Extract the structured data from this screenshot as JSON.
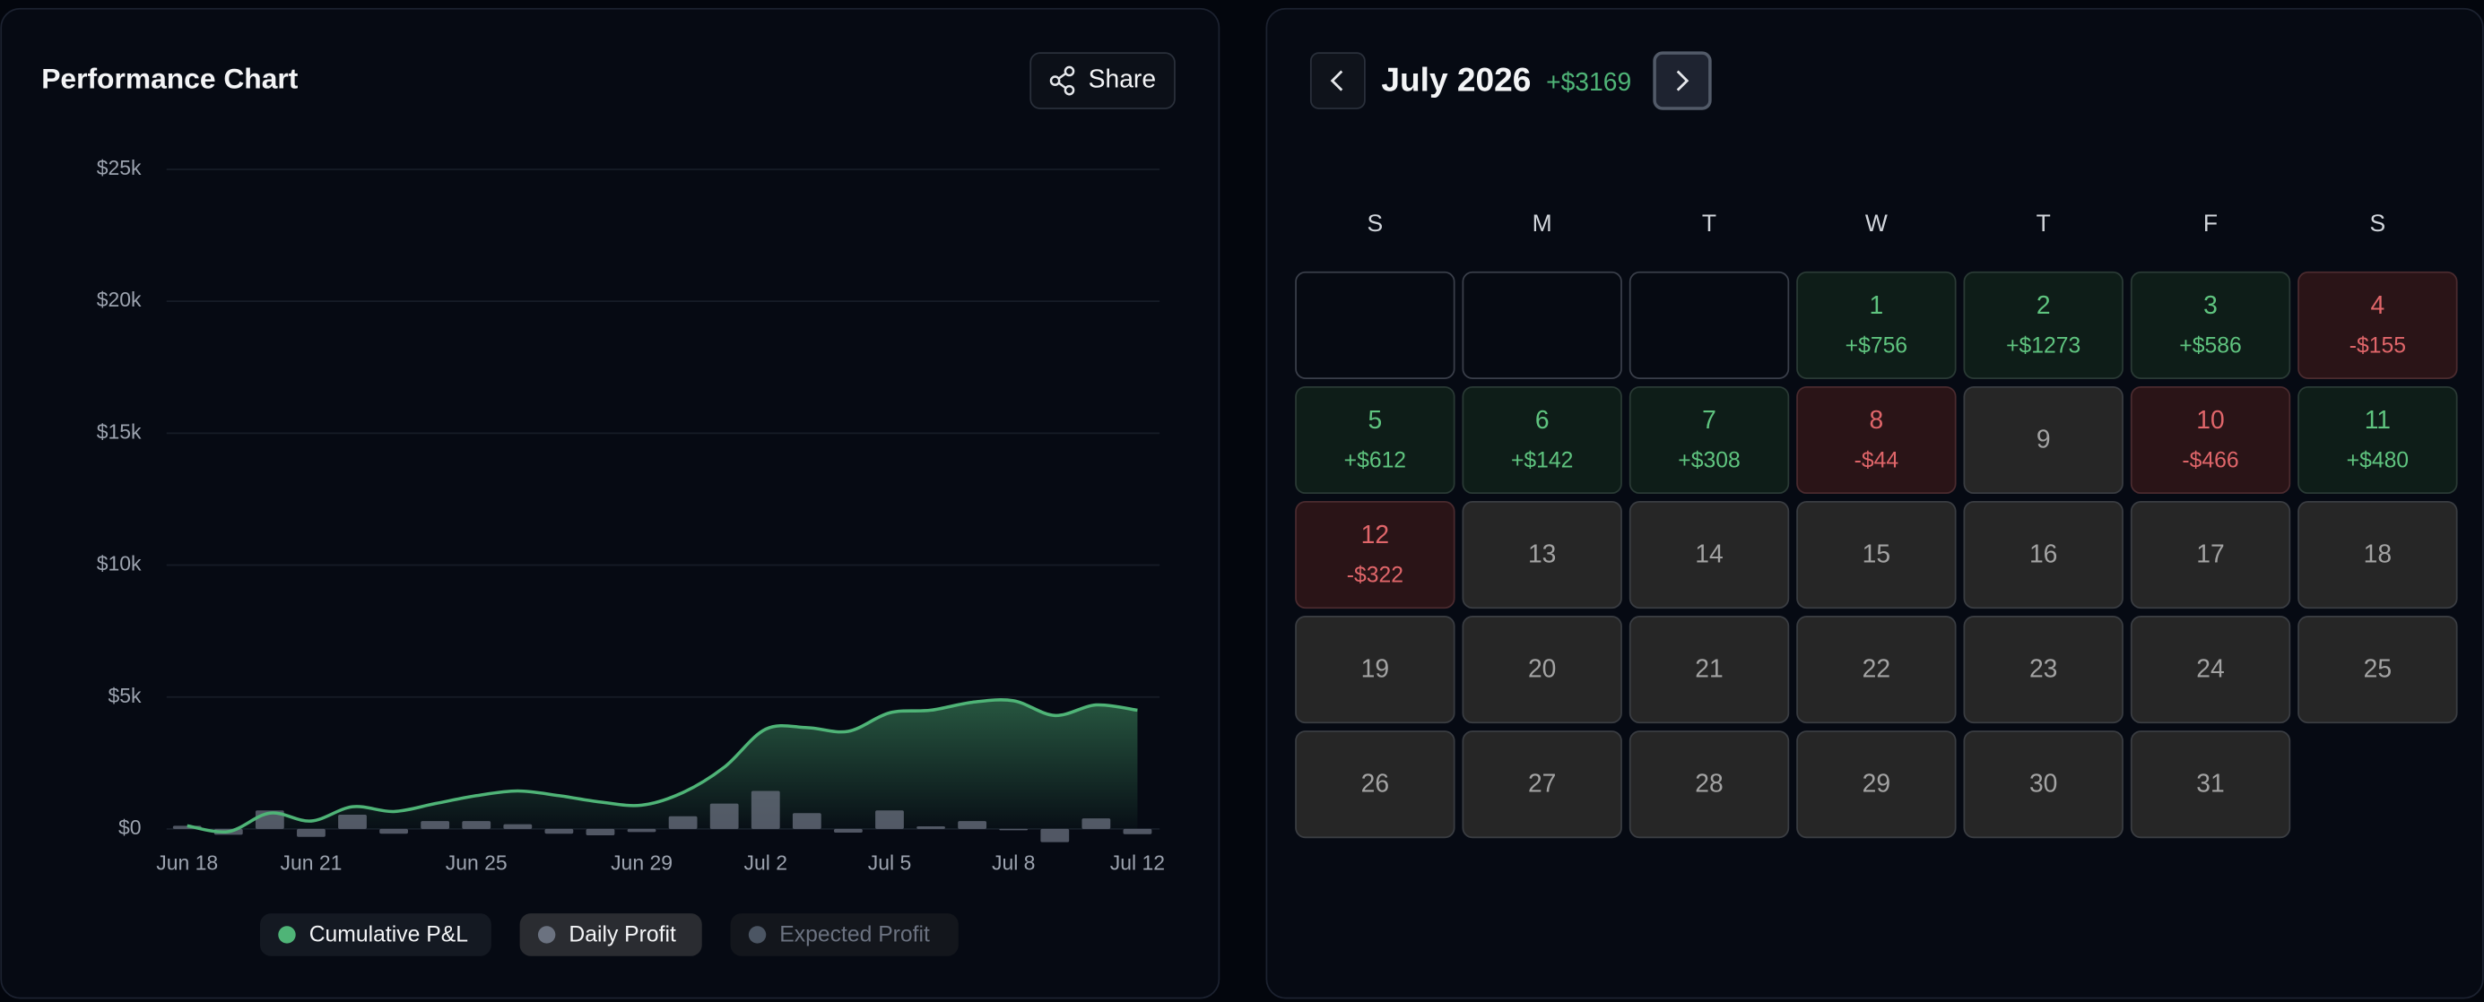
{
  "panel_title": "Performance Chart",
  "share_button": "Share",
  "chart_data": {
    "type": "area_bar",
    "categories": [
      "Jun 18",
      null,
      null,
      "Jun 21",
      null,
      null,
      null,
      "Jun 25",
      null,
      null,
      null,
      "Jun 29",
      null,
      null,
      "Jul 2",
      null,
      null,
      "Jul 5",
      null,
      null,
      "Jul 8",
      null,
      null,
      "Jul 12"
    ],
    "series": [
      {
        "name": "Cumulative P&L",
        "color": "#4fb477",
        "values": [
          120,
          -100,
          600,
          300,
          840,
          660,
          960,
          1260,
          1440,
          1260,
          1020,
          900,
          1380,
          2340,
          3780,
          3840,
          3700,
          4400,
          4500,
          4800,
          4860,
          4300,
          4700,
          4500
        ]
      },
      {
        "name": "Daily Profit",
        "color": "#6b7280",
        "values": [
          120,
          -220,
          700,
          -300,
          540,
          -180,
          300,
          300,
          180,
          -180,
          -240,
          -120,
          480,
          960,
          1440,
          600,
          -140,
          700,
          100,
          300,
          -50,
          -500,
          400,
          -200
        ]
      }
    ],
    "hidden_series": [
      {
        "name": "Expected Profit",
        "color": "#4b5563"
      }
    ],
    "ylim": [
      -500,
      25000
    ],
    "yticks": [
      {
        "value": 0,
        "label": "$0"
      },
      {
        "value": 5000,
        "label": "$5k"
      },
      {
        "value": 10000,
        "label": "$10k"
      },
      {
        "value": 15000,
        "label": "$15k"
      },
      {
        "value": 20000,
        "label": "$20k"
      },
      {
        "value": 25000,
        "label": "$25k"
      }
    ],
    "grid": true
  },
  "calendar": {
    "title": "July 2026",
    "total": {
      "value": 3169,
      "label": "+$3169"
    },
    "weekdays": [
      "S",
      "M",
      "T",
      "W",
      "T",
      "F",
      "S"
    ],
    "cells": [
      null,
      null,
      null,
      {
        "day": 1,
        "value": 756,
        "label": "+$756"
      },
      {
        "day": 2,
        "value": 1273,
        "label": "+$1273"
      },
      {
        "day": 3,
        "value": 586,
        "label": "+$586"
      },
      {
        "day": 4,
        "value": -155,
        "label": "-$155"
      },
      {
        "day": 5,
        "value": 612,
        "label": "+$612"
      },
      {
        "day": 6,
        "value": 142,
        "label": "+$142"
      },
      {
        "day": 7,
        "value": 308,
        "label": "+$308"
      },
      {
        "day": 8,
        "value": -44,
        "label": "-$44"
      },
      {
        "day": 9
      },
      {
        "day": 10,
        "value": -466,
        "label": "-$466"
      },
      {
        "day": 11,
        "value": 480,
        "label": "+$480"
      },
      {
        "day": 12,
        "value": -322,
        "label": "-$322"
      },
      {
        "day": 13
      },
      {
        "day": 14
      },
      {
        "day": 15
      },
      {
        "day": 16
      },
      {
        "day": 17
      },
      {
        "day": 18
      },
      {
        "day": 19
      },
      {
        "day": 20
      },
      {
        "day": 21
      },
      {
        "day": 22
      },
      {
        "day": 23
      },
      {
        "day": 24
      },
      {
        "day": 25
      },
      {
        "day": 26
      },
      {
        "day": 27
      },
      {
        "day": 28
      },
      {
        "day": 29
      },
      {
        "day": 30
      },
      {
        "day": 31
      }
    ]
  }
}
